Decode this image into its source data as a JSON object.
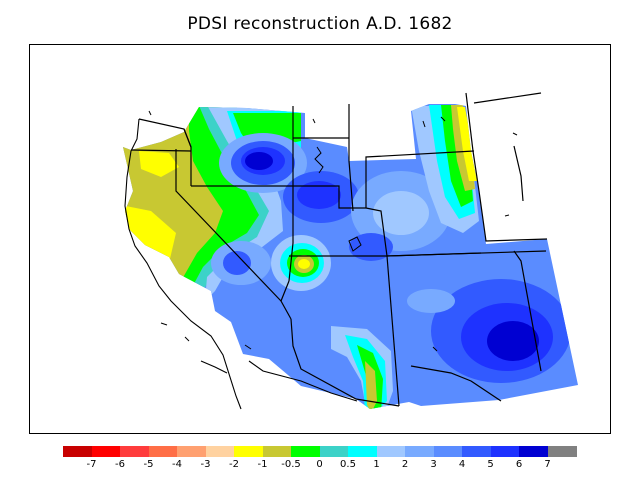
{
  "title": "PDSI reconstruction A.D. 1682",
  "colors": {
    "dry_strong": "#c80000",
    "neutral_yellow": "#ffff00",
    "olive": "#c8c832",
    "green": "#00ff00",
    "cyan": "#00ffff",
    "blue_mid": "#5a8cff",
    "blue_dark": "#0000d2"
  },
  "colorbar": {
    "colors": [
      "#c80000",
      "#ff0000",
      "#ff3c3c",
      "#ff6e46",
      "#ffa070",
      "#ffd2a0",
      "#ffff00",
      "#c8c832",
      "#00ff00",
      "#3cd2c8",
      "#00ffff",
      "#a0c8ff",
      "#78aaff",
      "#5a8cff",
      "#325aff",
      "#1e32ff",
      "#0000d2",
      "#808080"
    ],
    "labels": [
      "-7",
      "-6",
      "-5",
      "-4",
      "-3",
      "-2",
      "-1",
      "-0.5",
      "0",
      "0.5",
      "1",
      "2",
      "3",
      "4",
      "5",
      "6",
      "7"
    ]
  }
}
